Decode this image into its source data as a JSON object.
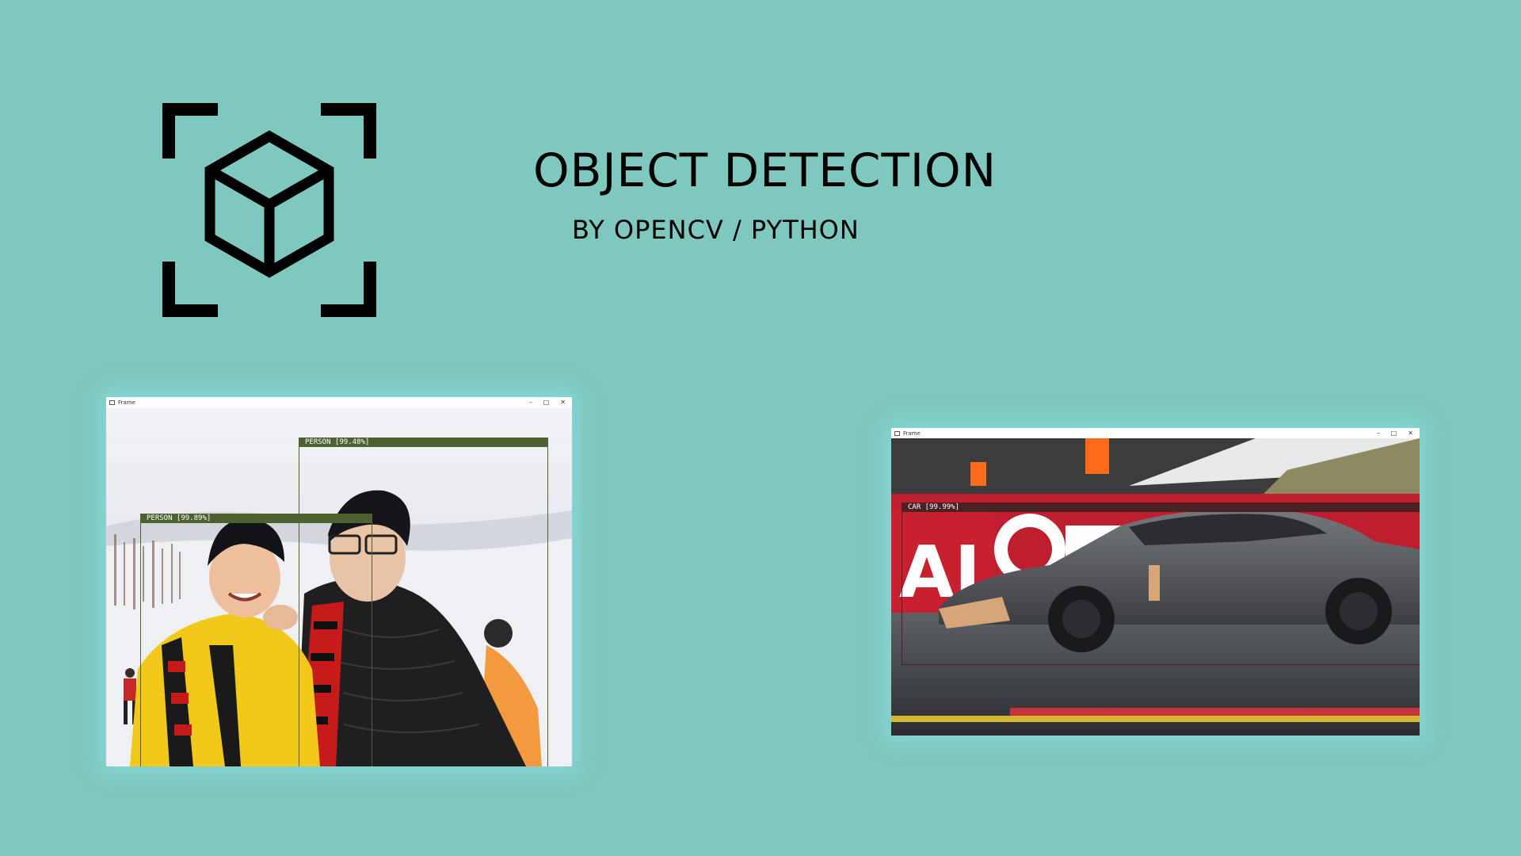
{
  "colors": {
    "background": "#7fc8bf",
    "person_box": "#4d6132",
    "car_box": "#4a2224"
  },
  "header": {
    "icon": "object-cube-frame-icon",
    "title": "OBJECT DETECTION",
    "subtitle": "BY OPENCV / PYTHON"
  },
  "window_left": {
    "title": "Frame",
    "controls": [
      "–",
      "□",
      "✕"
    ],
    "detections": [
      {
        "label": "PERSON [99.48%]"
      },
      {
        "label": "PERSON [99.89%]"
      }
    ]
  },
  "window_right": {
    "title": "Frame",
    "controls": [
      "–",
      "□",
      "✕"
    ],
    "detections": [
      {
        "label": "CAR [99.99%]"
      }
    ]
  }
}
